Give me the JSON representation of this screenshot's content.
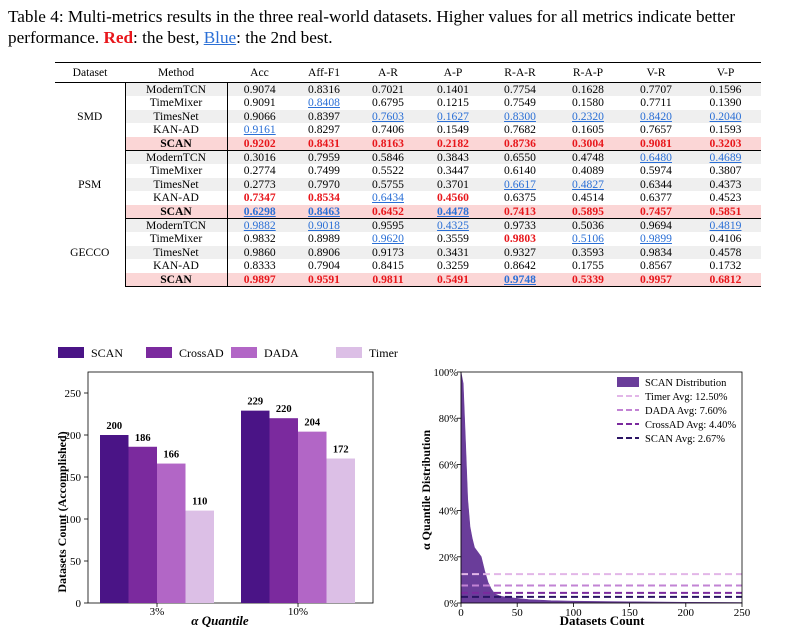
{
  "caption": {
    "prefix": "Table 4: Multi-metrics results in the three real-world datasets. Higher values for all metrics indicate better performance. ",
    "red_word": "Red",
    "mid": ": the best, ",
    "blue_word": "Blue",
    "suffix": ": the 2nd best."
  },
  "table": {
    "headers": [
      "Dataset",
      "Method",
      "Acc",
      "Aff-F1",
      "A-R",
      "A-P",
      "R-A-R",
      "R-A-P",
      "V-R",
      "V-P"
    ],
    "groups": [
      {
        "dataset": "SMD",
        "rows": [
          {
            "method": "ModernTCN",
            "values": [
              "0.9074",
              "0.8316",
              "0.7021",
              "0.1401",
              "0.7754",
              "0.1628",
              "0.7707",
              "0.1596"
            ],
            "marks": [
              "",
              "",
              "",
              "",
              "",
              "",
              "",
              ""
            ]
          },
          {
            "method": "TimeMixer",
            "values": [
              "0.9091",
              "0.8408",
              "0.6795",
              "0.1215",
              "0.7549",
              "0.1580",
              "0.7711",
              "0.1390"
            ],
            "marks": [
              "",
              "s",
              "",
              "",
              "",
              "",
              "",
              ""
            ]
          },
          {
            "method": "TimesNet",
            "values": [
              "0.9066",
              "0.8397",
              "0.7603",
              "0.1627",
              "0.8300",
              "0.2320",
              "0.8420",
              "0.2040"
            ],
            "marks": [
              "",
              "",
              "s",
              "s",
              "s",
              "s",
              "s",
              "s"
            ]
          },
          {
            "method": "KAN-AD",
            "values": [
              "0.9161",
              "0.8297",
              "0.7406",
              "0.1549",
              "0.7682",
              "0.1605",
              "0.7657",
              "0.1593"
            ],
            "marks": [
              "s",
              "",
              "",
              "",
              "",
              "",
              "",
              ""
            ]
          },
          {
            "method": "SCAN",
            "values": [
              "0.9202",
              "0.8431",
              "0.8163",
              "0.2182",
              "0.8736",
              "0.3004",
              "0.9081",
              "0.3203"
            ],
            "marks": [
              "b",
              "b",
              "b",
              "b",
              "b",
              "b",
              "b",
              "b"
            ]
          }
        ]
      },
      {
        "dataset": "PSM",
        "rows": [
          {
            "method": "ModernTCN",
            "values": [
              "0.3016",
              "0.7959",
              "0.5846",
              "0.3843",
              "0.6550",
              "0.4748",
              "0.6480",
              "0.4689"
            ],
            "marks": [
              "",
              "",
              "",
              "",
              "",
              "",
              "s",
              "s"
            ]
          },
          {
            "method": "TimeMixer",
            "values": [
              "0.2774",
              "0.7499",
              "0.5522",
              "0.3447",
              "0.6140",
              "0.4089",
              "0.5974",
              "0.3807"
            ],
            "marks": [
              "",
              "",
              "",
              "",
              "",
              "",
              "",
              ""
            ]
          },
          {
            "method": "TimesNet",
            "values": [
              "0.2773",
              "0.7970",
              "0.5755",
              "0.3701",
              "0.6617",
              "0.4827",
              "0.6344",
              "0.4373"
            ],
            "marks": [
              "",
              "",
              "",
              "",
              "s",
              "s",
              "",
              ""
            ]
          },
          {
            "method": "KAN-AD",
            "values": [
              "0.7347",
              "0.8534",
              "0.6434",
              "0.4560",
              "0.6375",
              "0.4514",
              "0.6377",
              "0.4523"
            ],
            "marks": [
              "b",
              "b",
              "s",
              "b",
              "",
              "",
              "",
              ""
            ]
          },
          {
            "method": "SCAN",
            "values": [
              "0.6298",
              "0.8463",
              "0.6452",
              "0.4478",
              "0.7413",
              "0.5895",
              "0.7457",
              "0.5851"
            ],
            "marks": [
              "s",
              "s",
              "b",
              "s",
              "b",
              "b",
              "b",
              "b"
            ]
          }
        ]
      },
      {
        "dataset": "GECCO",
        "rows": [
          {
            "method": "ModernTCN",
            "values": [
              "0.9882",
              "0.9018",
              "0.9595",
              "0.4325",
              "0.9733",
              "0.5036",
              "0.9694",
              "0.4819"
            ],
            "marks": [
              "s",
              "s",
              "",
              "s",
              "",
              "",
              "",
              "s"
            ]
          },
          {
            "method": "TimeMixer",
            "values": [
              "0.9832",
              "0.8989",
              "0.9620",
              "0.3559",
              "0.9803",
              "0.5106",
              "0.9899",
              "0.4106"
            ],
            "marks": [
              "",
              "",
              "s",
              "",
              "b",
              "s",
              "s",
              ""
            ]
          },
          {
            "method": "TimesNet",
            "values": [
              "0.9860",
              "0.8906",
              "0.9173",
              "0.3431",
              "0.9327",
              "0.3593",
              "0.9834",
              "0.4578"
            ],
            "marks": [
              "",
              "",
              "",
              "",
              "",
              "",
              "",
              ""
            ]
          },
          {
            "method": "KAN-AD",
            "values": [
              "0.8333",
              "0.7904",
              "0.8415",
              "0.3259",
              "0.8642",
              "0.1755",
              "0.8567",
              "0.1732"
            ],
            "marks": [
              "",
              "",
              "",
              "",
              "",
              "",
              "",
              ""
            ]
          },
          {
            "method": "SCAN",
            "values": [
              "0.9897",
              "0.9591",
              "0.9811",
              "0.5491",
              "0.9748",
              "0.5339",
              "0.9957",
              "0.6812"
            ],
            "marks": [
              "b",
              "b",
              "b",
              "b",
              "s",
              "b",
              "b",
              "b"
            ]
          }
        ]
      }
    ]
  },
  "chart_data": [
    {
      "type": "bar",
      "legend": [
        "SCAN",
        "CrossAD",
        "DADA",
        "Timer"
      ],
      "colors": [
        "#4a1486",
        "#7b2a9e",
        "#b266c6",
        "#dcbfe6"
      ],
      "categories": [
        "3%",
        "10%"
      ],
      "series": [
        {
          "name": "SCAN",
          "values": [
            200,
            229
          ]
        },
        {
          "name": "CrossAD",
          "values": [
            186,
            220
          ]
        },
        {
          "name": "DADA",
          "values": [
            166,
            204
          ]
        },
        {
          "name": "Timer",
          "values": [
            110,
            172
          ]
        }
      ],
      "xlabel": "α Quantile",
      "ylabel": "Datasets Count (Accomplished)",
      "ylim": [
        0,
        275
      ],
      "yticks": [
        0,
        50,
        100,
        150,
        200,
        250
      ],
      "legend_placement": "top"
    },
    {
      "type": "area",
      "xlabel": "Datasets Count",
      "ylabel": "α Quantile Distribution",
      "xlim": [
        0,
        250
      ],
      "ylim": [
        0,
        100
      ],
      "xticks": [
        0,
        50,
        100,
        150,
        200,
        250
      ],
      "yticks": [
        "0%",
        "20%",
        "40%",
        "60%",
        "80%",
        "100%"
      ],
      "legend_placement": "top-right",
      "distribution": {
        "name": "SCAN Distribution",
        "color": "#6a3d9a",
        "x": [
          0,
          2,
          4,
          6,
          8,
          10,
          12,
          15,
          18,
          21,
          24,
          27,
          30,
          35,
          40,
          50,
          60,
          80,
          100,
          150,
          200,
          250
        ],
        "y": [
          100,
          95,
          70,
          45,
          33,
          28,
          24,
          22,
          20,
          14,
          9,
          6,
          4,
          3,
          2.5,
          2,
          1.5,
          1,
          0.8,
          0.5,
          0.3,
          0.2
        ]
      },
      "averages": [
        {
          "name": "Timer Avg: 12.50%",
          "value": 12.5,
          "color": "#e2b6e8"
        },
        {
          "name": "DADA Avg: 7.60%",
          "value": 7.6,
          "color": "#c283d4"
        },
        {
          "name": "CrossAD Avg: 4.40%",
          "value": 4.4,
          "color": "#7b2a9e"
        },
        {
          "name": "SCAN Avg: 2.67%",
          "value": 2.67,
          "color": "#2b1464"
        }
      ]
    }
  ]
}
